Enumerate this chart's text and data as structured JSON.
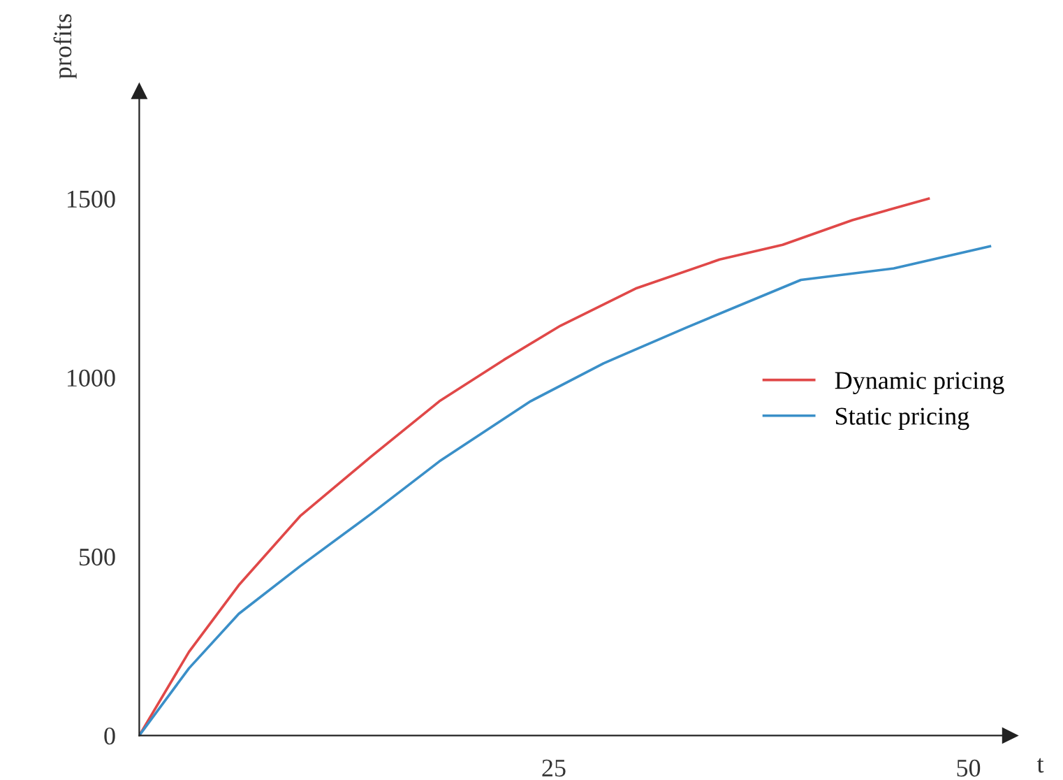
{
  "chart_data": {
    "type": "line",
    "xlabel": "t",
    "ylabel": "profits",
    "series": [
      {
        "name": "Dynamic pricing",
        "color": "#e04848",
        "x": [
          0,
          3,
          6,
          9.7,
          14,
          18.1,
          22,
          25.4,
          30,
          35,
          38.8,
          43,
          47.6
        ],
        "values": [
          0,
          234,
          420,
          613,
          780,
          934,
          1050,
          1145,
          1250,
          1330,
          1371,
          1440,
          1500
        ]
      },
      {
        "name": "Static pricing",
        "color": "#3a8fc8",
        "x": [
          0,
          3,
          6,
          9.7,
          14,
          18.1,
          23.6,
          28,
          33,
          39.9,
          45.5,
          51.3
        ],
        "values": [
          0,
          188,
          340,
          473,
          620,
          766,
          934,
          1040,
          1140,
          1273,
          1305,
          1367
        ]
      }
    ],
    "xlim": [
      0,
      52.5
    ],
    "ylim": [
      0,
      1800
    ],
    "xticks": [
      25,
      50
    ],
    "yticks": [
      0,
      500,
      1000,
      1500
    ],
    "legend": "right",
    "grid": false,
    "line_style": "solid"
  }
}
